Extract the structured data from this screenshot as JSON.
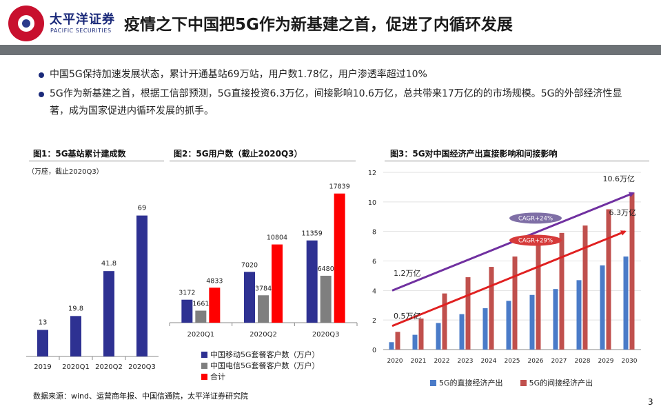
{
  "header": {
    "logo_cn": "太平洋证券",
    "logo_en": "PACIFIC SECURITIES",
    "title": "疫情之下中国把5G作为新基建之首，促进了内循环发展"
  },
  "bullets": [
    "中国5G保持加速发展状态，累计开通基站69万站，用户数1.78亿，用户渗透率超过10%",
    "5G作为新基建之首，根据工信部预测，5G直接投资6.3万亿，间接影响10.6万亿，总共带来17万亿的的市场规模。5G的外部经济性显著，成为国家促进内循环发展的抓手。"
  ],
  "colors": {
    "navy": "#2e3192",
    "gray": "#7f7f7f",
    "red": "#ff0000",
    "blue": "#4a7bc8",
    "darkred": "#c0504d",
    "purple": "#7030a0",
    "arrow_red": "#e02020"
  },
  "chart_data": [
    {
      "type": "bar",
      "title": "图1：5G基站累计建成数",
      "unit_note": "（万座，截止2020Q3）",
      "categories": [
        "2019",
        "2020Q1",
        "2020Q2",
        "2020Q3"
      ],
      "values": [
        13,
        19.8,
        41.8,
        69
      ],
      "value_labels": [
        "13",
        "19.8",
        "41.8",
        "69"
      ],
      "ylim": [
        0,
        80
      ]
    },
    {
      "type": "bar",
      "title": "图2：5G用户数（截止2020Q3）",
      "categories": [
        "2020Q1",
        "2020Q2",
        "2020Q3"
      ],
      "series": [
        {
          "name": "中国移动5G套餐客户数（万户）",
          "values": [
            3172,
            7020,
            11359
          ],
          "labels": [
            "3172",
            "7020",
            "11359"
          ]
        },
        {
          "name": "中国电信5G套餐客户数（万户）",
          "values": [
            1661,
            3784,
            6480
          ],
          "labels": [
            "1661",
            "3784",
            "6480"
          ]
        },
        {
          "name": "合计",
          "values": [
            4833,
            10804,
            17839
          ],
          "labels": [
            "4833",
            "10804",
            "17839"
          ]
        }
      ],
      "ylim": [
        0,
        20000
      ]
    },
    {
      "type": "bar",
      "title": "图3：5G对中国经济产出直接影响和间接影响",
      "categories": [
        "2020",
        "2021",
        "2022",
        "2023",
        "2024",
        "2025",
        "2026",
        "2027",
        "2028",
        "2029",
        "2030"
      ],
      "series": [
        {
          "name": "5G的直接经济产出",
          "values": [
            0.5,
            1.0,
            1.8,
            2.4,
            2.8,
            3.3,
            3.7,
            4.1,
            4.7,
            5.7,
            6.3
          ]
        },
        {
          "name": "5G的间接经济产出",
          "values": [
            1.2,
            2.1,
            3.8,
            4.9,
            5.6,
            6.3,
            7.1,
            7.9,
            8.4,
            9.5,
            10.6
          ]
        }
      ],
      "yticks": [
        "0",
        "2",
        "4",
        "6",
        "8",
        "10",
        "12"
      ],
      "ylim": [
        0,
        12
      ],
      "grid": true,
      "legend": "bottom",
      "annotations": {
        "start_indirect": "1.2万亿",
        "start_direct": "0.5万亿",
        "end_indirect": "10.6万亿",
        "end_direct": "6.3万亿",
        "cagr_indirect": "CAGR+24%",
        "cagr_direct": "CAGR+29%"
      }
    }
  ],
  "source": "数据来源：wind、运营商年报、中国信通院，太平洋证券研究院",
  "page_number": "3"
}
